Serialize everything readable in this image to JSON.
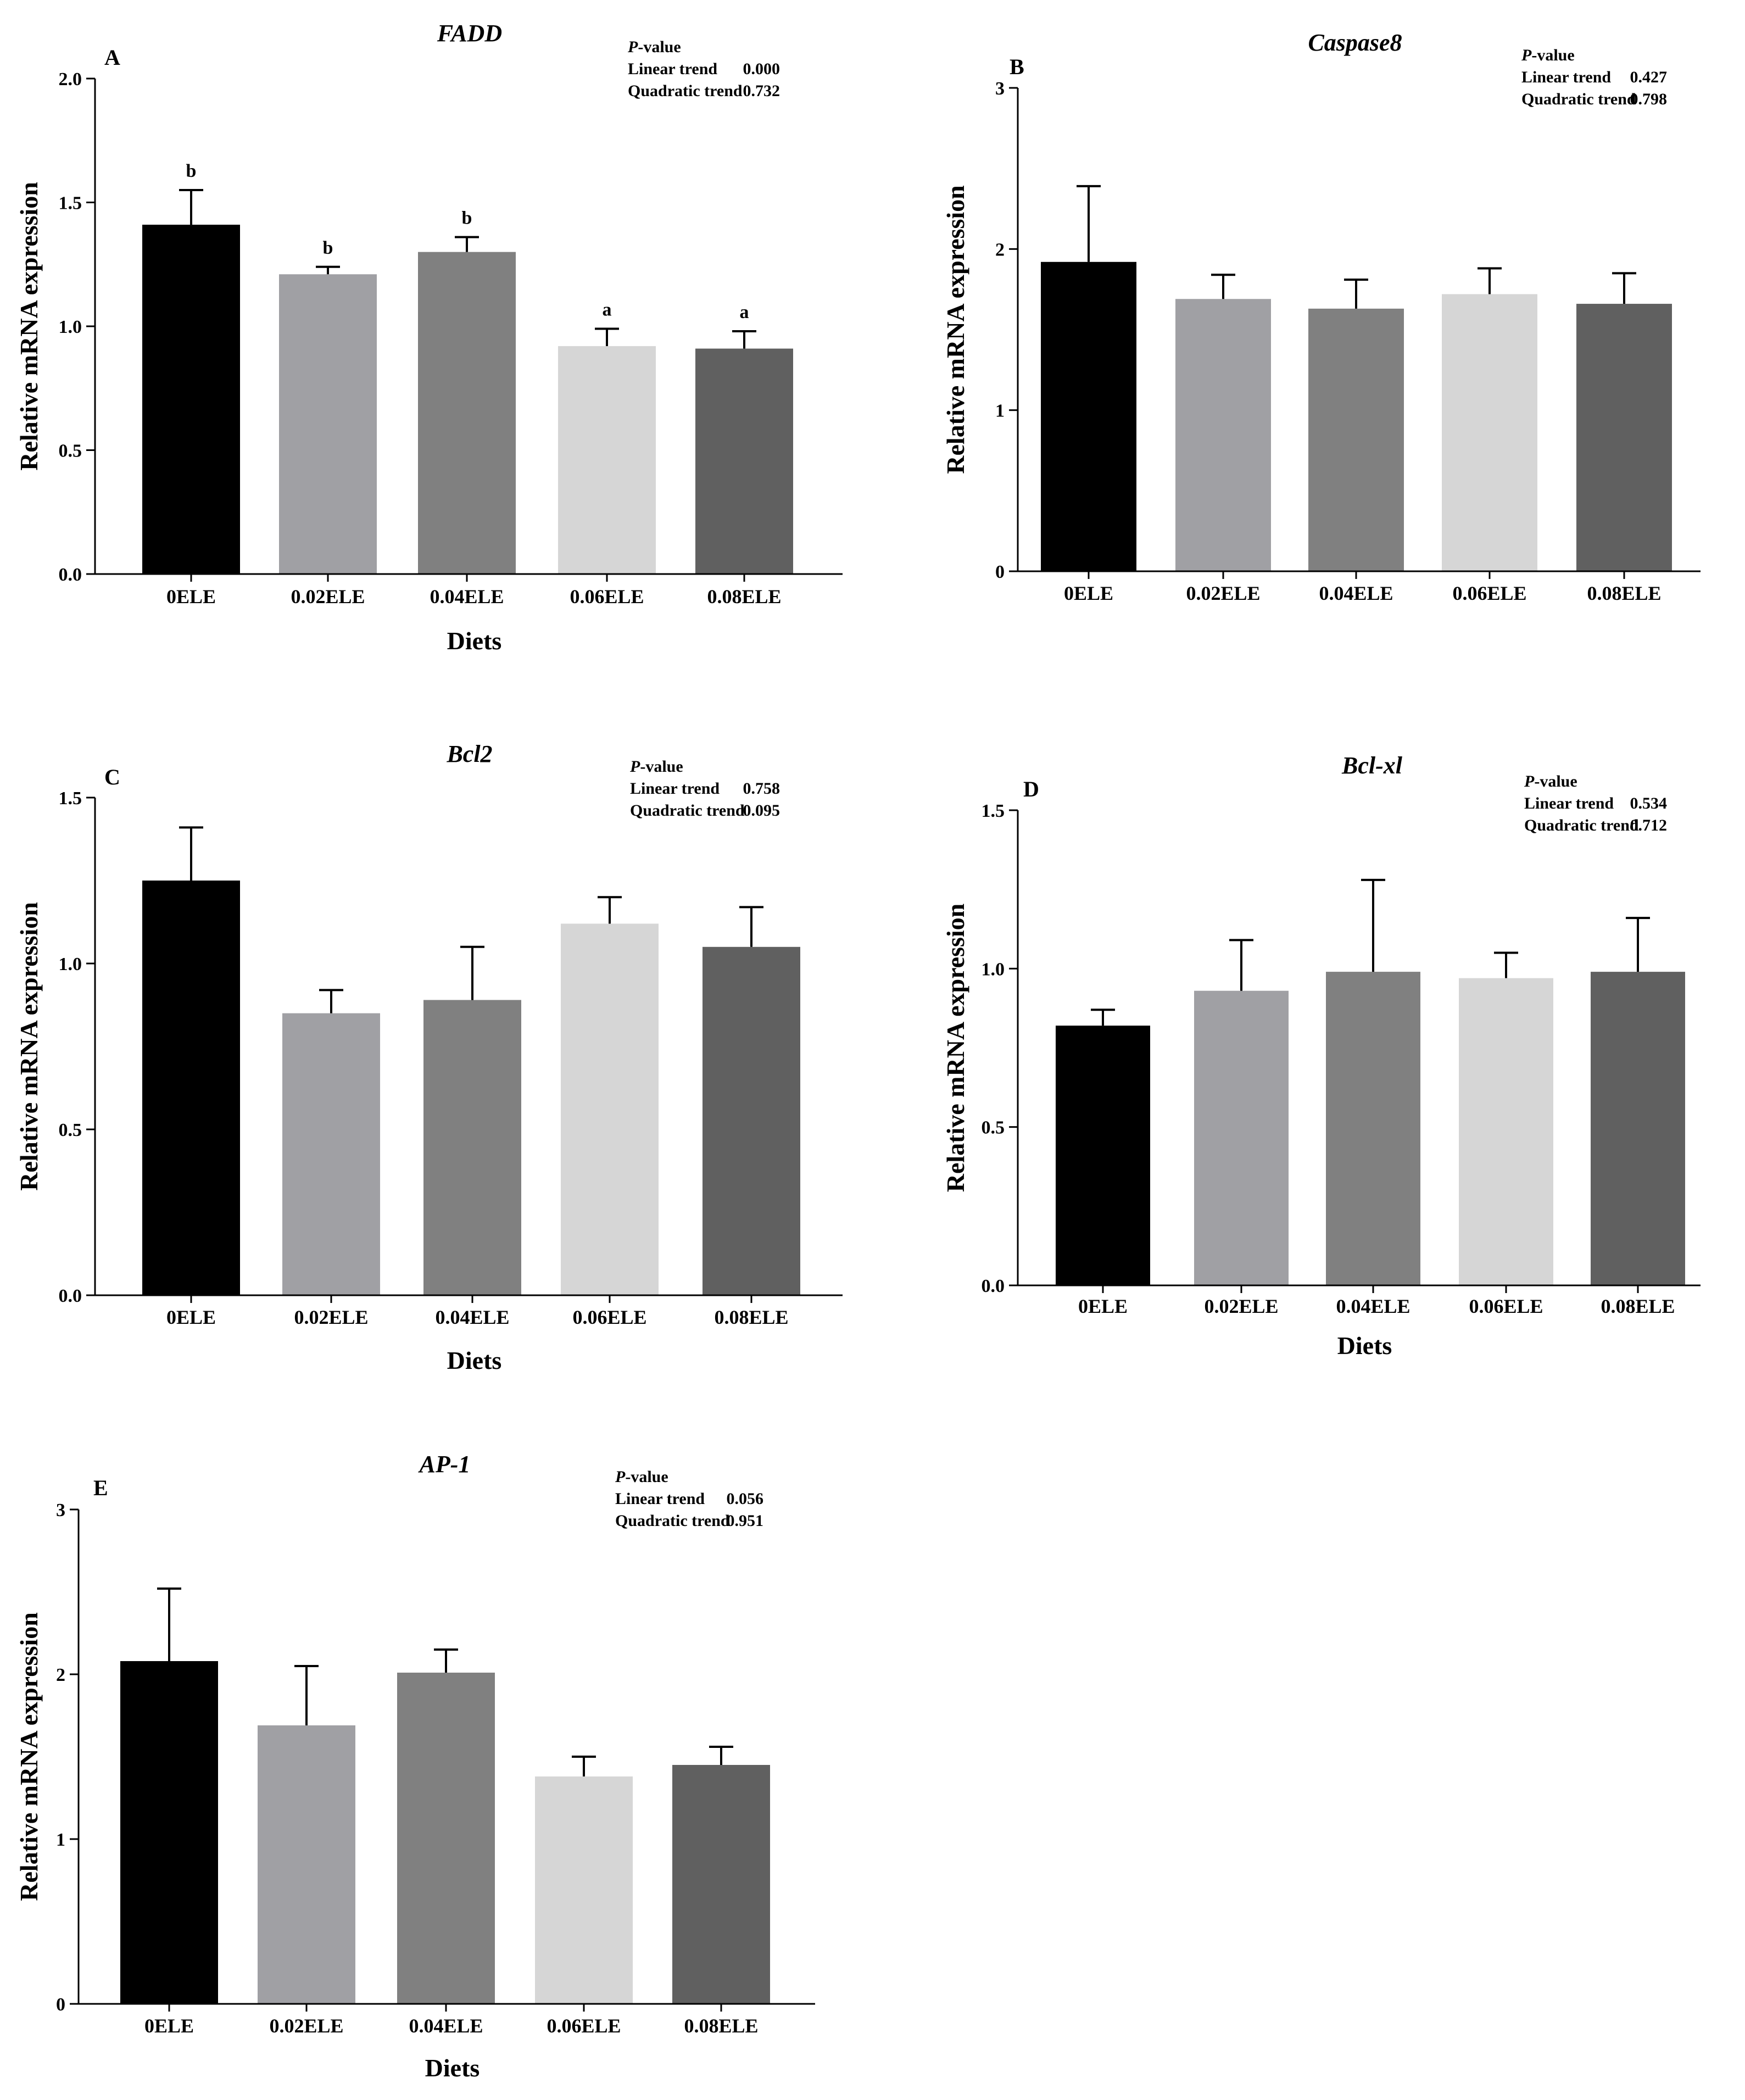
{
  "colors": [
    "#000000",
    "#a0a0a4",
    "#808080",
    "#d6d6d6",
    "#606060"
  ],
  "chart_data": [
    {
      "id": "A",
      "type": "bar",
      "letter": "A",
      "title": "FADD",
      "xlabel": "Diets",
      "ylabel": "Relative mRNA expression",
      "categories": [
        "0ELE",
        "0.02ELE",
        "0.04ELE",
        "0.06ELE",
        "0.08ELE"
      ],
      "values": [
        1.41,
        1.21,
        1.3,
        0.92,
        0.91
      ],
      "errors": [
        0.14,
        0.03,
        0.06,
        0.07,
        0.07
      ],
      "sig_letters": [
        "b",
        "b",
        "b",
        "a",
        "a"
      ],
      "ylim": [
        0,
        2.0
      ],
      "yticks": [
        "0.0",
        "0.5",
        "1.0",
        "1.5",
        "2.0"
      ],
      "pvalue": {
        "header_italic": "P",
        "header_rest": "-value",
        "linear_label": "Linear trend",
        "linear": "0.000",
        "quadratic_label": "Quadratic trend",
        "quadratic": "0.732"
      }
    },
    {
      "id": "B",
      "type": "bar",
      "letter": "B",
      "title": "Caspase8",
      "xlabel": "",
      "ylabel": "Relative mRNA expression",
      "categories": [
        "0ELE",
        "0.02ELE",
        "0.04ELE",
        "0.06ELE",
        "0.08ELE"
      ],
      "values": [
        1.92,
        1.69,
        1.63,
        1.72,
        1.66
      ],
      "errors": [
        0.47,
        0.15,
        0.18,
        0.16,
        0.19
      ],
      "sig_letters": [],
      "ylim": [
        0,
        3
      ],
      "yticks": [
        "0",
        "1",
        "2",
        "3"
      ],
      "pvalue": {
        "header_italic": "P",
        "header_rest": "-value",
        "linear_label": "Linear trend",
        "linear": "0.427",
        "quadratic_label": "Quadratic trend",
        "quadratic": "0.798"
      }
    },
    {
      "id": "C",
      "type": "bar",
      "letter": "C",
      "title": "Bcl2",
      "xlabel": "Diets",
      "ylabel": "Relative mRNA expression",
      "categories": [
        "0ELE",
        "0.02ELE",
        "0.04ELE",
        "0.06ELE",
        "0.08ELE"
      ],
      "values": [
        1.25,
        0.85,
        0.89,
        1.12,
        1.05
      ],
      "errors": [
        0.16,
        0.07,
        0.16,
        0.08,
        0.12
      ],
      "sig_letters": [],
      "ylim": [
        0,
        1.5
      ],
      "yticks": [
        "0.0",
        "0.5",
        "1.0",
        "1.5"
      ],
      "pvalue": {
        "header_italic": "P",
        "header_rest": "-value",
        "linear_label": "Linear trend",
        "linear": "0.758",
        "quadratic_label": "Quadratic trend",
        "quadratic": "0.095"
      }
    },
    {
      "id": "D",
      "type": "bar",
      "letter": "D",
      "title": "Bcl-xl",
      "xlabel": "Diets",
      "ylabel": "Relative mRNA expression",
      "categories": [
        "0ELE",
        "0.02ELE",
        "0.04ELE",
        "0.06ELE",
        "0.08ELE"
      ],
      "values": [
        0.82,
        0.93,
        0.99,
        0.97,
        0.99
      ],
      "errors": [
        0.05,
        0.16,
        0.29,
        0.08,
        0.17
      ],
      "sig_letters": [],
      "ylim": [
        0,
        1.5
      ],
      "yticks": [
        "0.0",
        "0.5",
        "1.0",
        "1.5"
      ],
      "pvalue": {
        "header_italic": "P",
        "header_rest": "-value",
        "linear_label": "Linear trend",
        "linear": "0.534",
        "quadratic_label": "Quadratic trend",
        "quadratic": "0.712"
      }
    },
    {
      "id": "E",
      "type": "bar",
      "letter": "E",
      "title": "AP-1",
      "xlabel": "Diets",
      "ylabel": "Relative mRNA expression",
      "categories": [
        "0ELE",
        "0.02ELE",
        "0.04ELE",
        "0.06ELE",
        "0.08ELE"
      ],
      "values": [
        2.08,
        1.69,
        2.01,
        1.38,
        1.45
      ],
      "errors": [
        0.44,
        0.36,
        0.14,
        0.12,
        0.11
      ],
      "sig_letters": [],
      "ylim": [
        0,
        3
      ],
      "yticks": [
        "0",
        "1",
        "2",
        "3"
      ],
      "pvalue": {
        "header_italic": "P",
        "header_rest": "-value",
        "linear_label": "Linear trend",
        "linear": "0.056",
        "quadratic_label": "Quadratic trend",
        "quadratic": "0.951"
      }
    }
  ]
}
